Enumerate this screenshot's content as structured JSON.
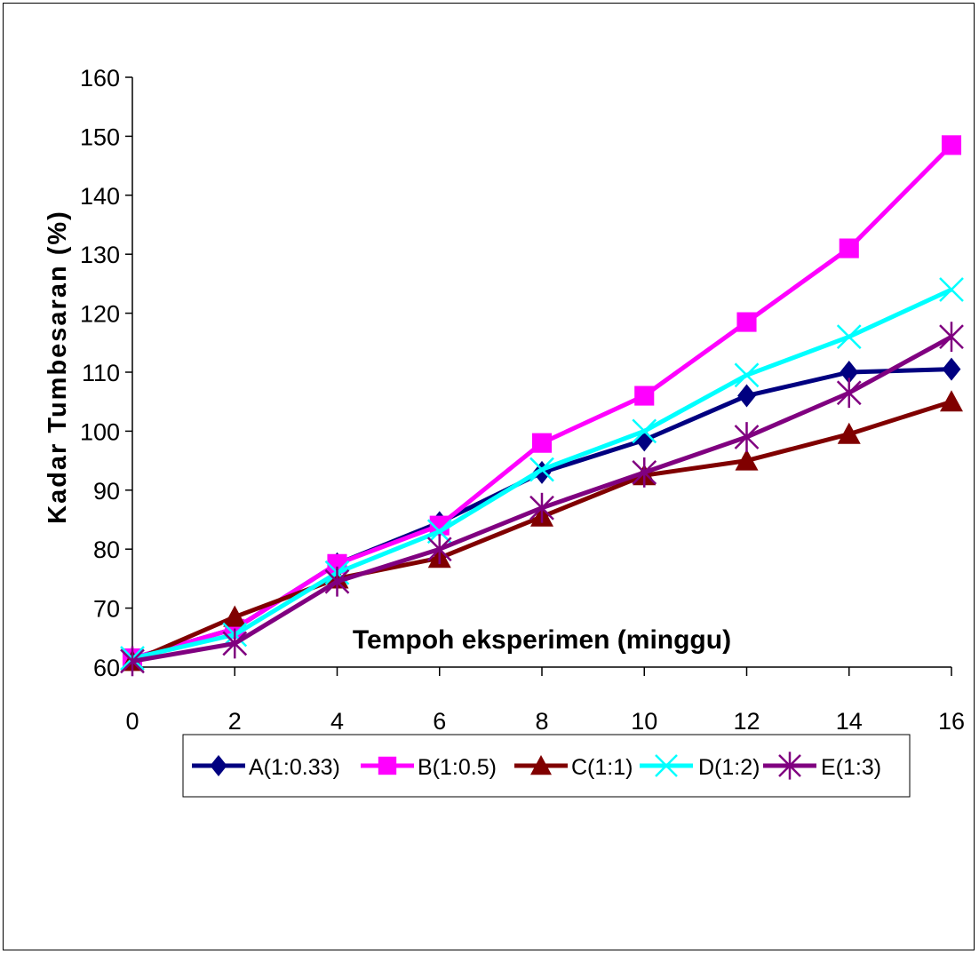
{
  "chart_data": {
    "type": "line",
    "title": "",
    "xlabel": "Tempoh eksperimen (minggu)",
    "ylabel": "Kadar Tumbesaran (%)",
    "x": [
      0,
      2,
      4,
      6,
      8,
      10,
      12,
      14,
      16
    ],
    "x_tick_labels": [
      "0",
      "2",
      "4",
      "6",
      "8",
      "10",
      "12",
      "14",
      "16"
    ],
    "ylim": [
      60,
      160
    ],
    "y_ticks": [
      60,
      70,
      80,
      90,
      100,
      110,
      120,
      130,
      140,
      150,
      160
    ],
    "grid": false,
    "legend_position": "bottom",
    "series": [
      {
        "name": "A(1:0.33)",
        "color": "#000080",
        "marker": "diamond",
        "values": [
          61.5,
          66.5,
          77.5,
          84.5,
          93,
          98.5,
          106,
          110,
          110.5
        ]
      },
      {
        "name": "B(1:0.5)",
        "color": "#ff00ff",
        "marker": "square",
        "values": [
          61.5,
          66.5,
          77.5,
          84,
          98,
          106,
          118.5,
          131,
          148.5
        ]
      },
      {
        "name": "C(1:1)",
        "color": "#800000",
        "marker": "triangle",
        "values": [
          61,
          68.5,
          75,
          78.5,
          85.5,
          92.5,
          95,
          99.5,
          105
        ]
      },
      {
        "name": "D(1:2)",
        "color": "#00ffff",
        "marker": "x",
        "values": [
          61.5,
          65.5,
          76,
          83,
          93.5,
          100,
          109.5,
          116,
          124
        ]
      },
      {
        "name": "E(1:3)",
        "color": "#800080",
        "marker": "star",
        "values": [
          61,
          64,
          74.5,
          80,
          87,
          93,
          99,
          106.5,
          116
        ]
      }
    ]
  }
}
